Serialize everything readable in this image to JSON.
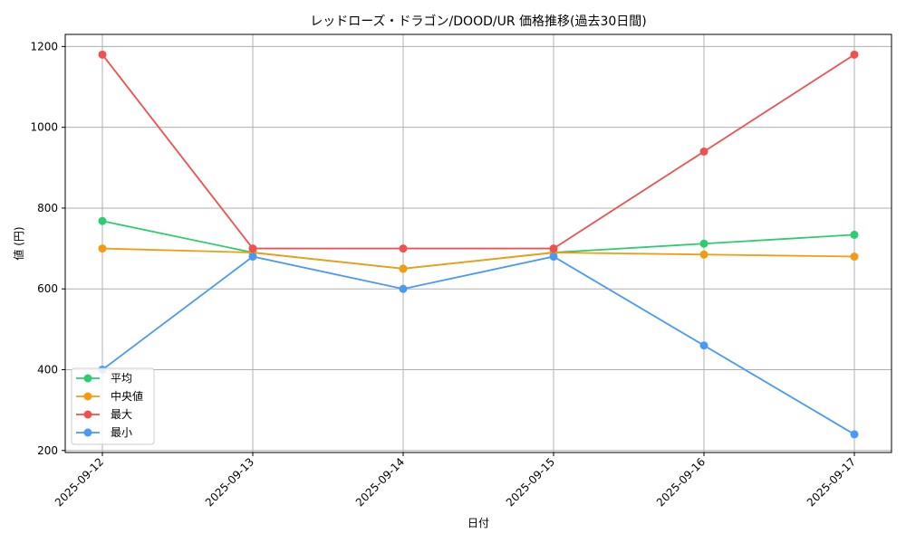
{
  "chart_data": {
    "type": "line",
    "title": "レッドローズ・ドラゴン/DOOD/UR 価格推移(過去30日間)",
    "xlabel": "日付",
    "ylabel": "値 (円)",
    "categories": [
      "2025-09-12",
      "2025-09-13",
      "2025-09-14",
      "2025-09-15",
      "2025-09-16",
      "2025-09-17"
    ],
    "ylim": [
      195,
      1230
    ],
    "yticks": [
      200,
      400,
      600,
      800,
      1000,
      1200
    ],
    "grid": true,
    "legend_position": "lower-left",
    "series": [
      {
        "name": "平均",
        "color": "#2ecc71",
        "values": [
          768,
          690,
          650,
          690,
          712,
          734
        ]
      },
      {
        "name": "中央値",
        "color": "#f39c12",
        "values": [
          700,
          690,
          650,
          690,
          685,
          680
        ]
      },
      {
        "name": "最大",
        "color": "#f05050",
        "values": [
          1180,
          700,
          700,
          700,
          940,
          1180
        ]
      },
      {
        "name": "最小",
        "color": "#4a9af5",
        "values": [
          400,
          680,
          600,
          680,
          460,
          240
        ]
      }
    ]
  }
}
